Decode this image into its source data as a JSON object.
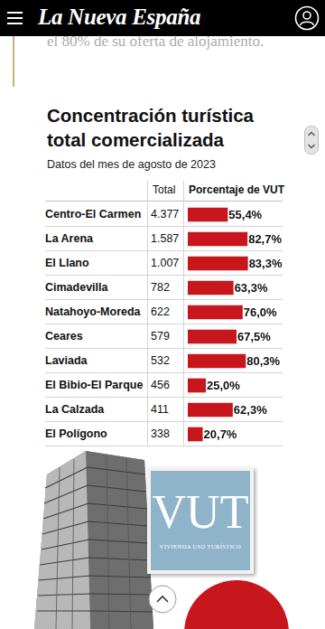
{
  "page": {
    "header": {
      "logo": "La Nueva España"
    },
    "intro_text": "el 80% de su oferta de alojamiento.",
    "image": {
      "sign_title": "VUT",
      "sign_subtitle": "VIVIENDA USO TURÍSTICO"
    }
  },
  "chart_data": {
    "type": "bar",
    "orientation": "horizontal",
    "title": "Concentración turística total comercializada",
    "subtitle": "Datos del mes de agosto de 2023",
    "column_headers": [
      "Total",
      "Porcentaje de VUT"
    ],
    "categories": [
      "Centro-El Carmen",
      "La Arena",
      "El Llano",
      "Cimadevilla",
      "Natahoyo-Moreda",
      "Ceares",
      "Laviada",
      "El Bibio-El Parque",
      "La Calzada",
      "El Polígono"
    ],
    "totals": [
      "4.377",
      "1.587",
      "1.007",
      "782",
      "622",
      "579",
      "532",
      "456",
      "411",
      "338"
    ],
    "values": [
      55.4,
      82.7,
      83.3,
      63.3,
      76.0,
      67.5,
      80.3,
      25.0,
      62.3,
      20.7
    ],
    "value_labels": [
      "55,4%",
      "82,7%",
      "83,3%",
      "63,3%",
      "76,0%",
      "67,5%",
      "80,3%",
      "25,0%",
      "62,3%",
      "20,7%"
    ],
    "color": "#c8161d",
    "xlim": [
      0,
      100
    ],
    "tick_labels": false,
    "grid": false,
    "data_labels": true
  }
}
